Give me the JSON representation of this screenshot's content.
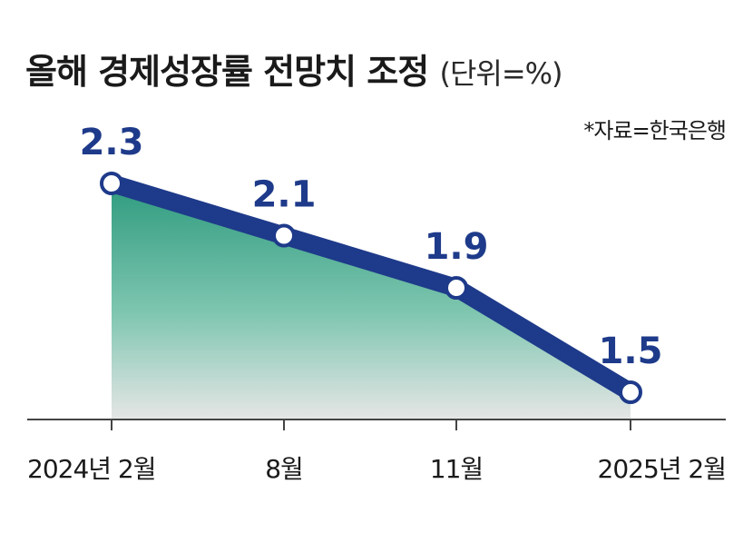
{
  "chart_data": {
    "type": "line",
    "title": "올해 경제성장률 전망치 조정",
    "unit": "(단위=%)",
    "source": "*자료=한국은행",
    "categories": [
      "2024년 2월",
      "8월",
      "11월",
      "2025년 2월"
    ],
    "values": [
      2.3,
      2.1,
      1.9,
      1.5
    ],
    "data_labels": [
      "2.3",
      "2.1",
      "1.9",
      "1.5"
    ],
    "ylim": [
      1.4,
      2.4
    ],
    "grid": false,
    "legend": "none",
    "colors": {
      "line": "#1e3a8a",
      "marker_fill": "#ffffff",
      "area_top": "#2e9b7f",
      "area_bottom": "#e6e6e6",
      "axis": "#444444"
    }
  }
}
